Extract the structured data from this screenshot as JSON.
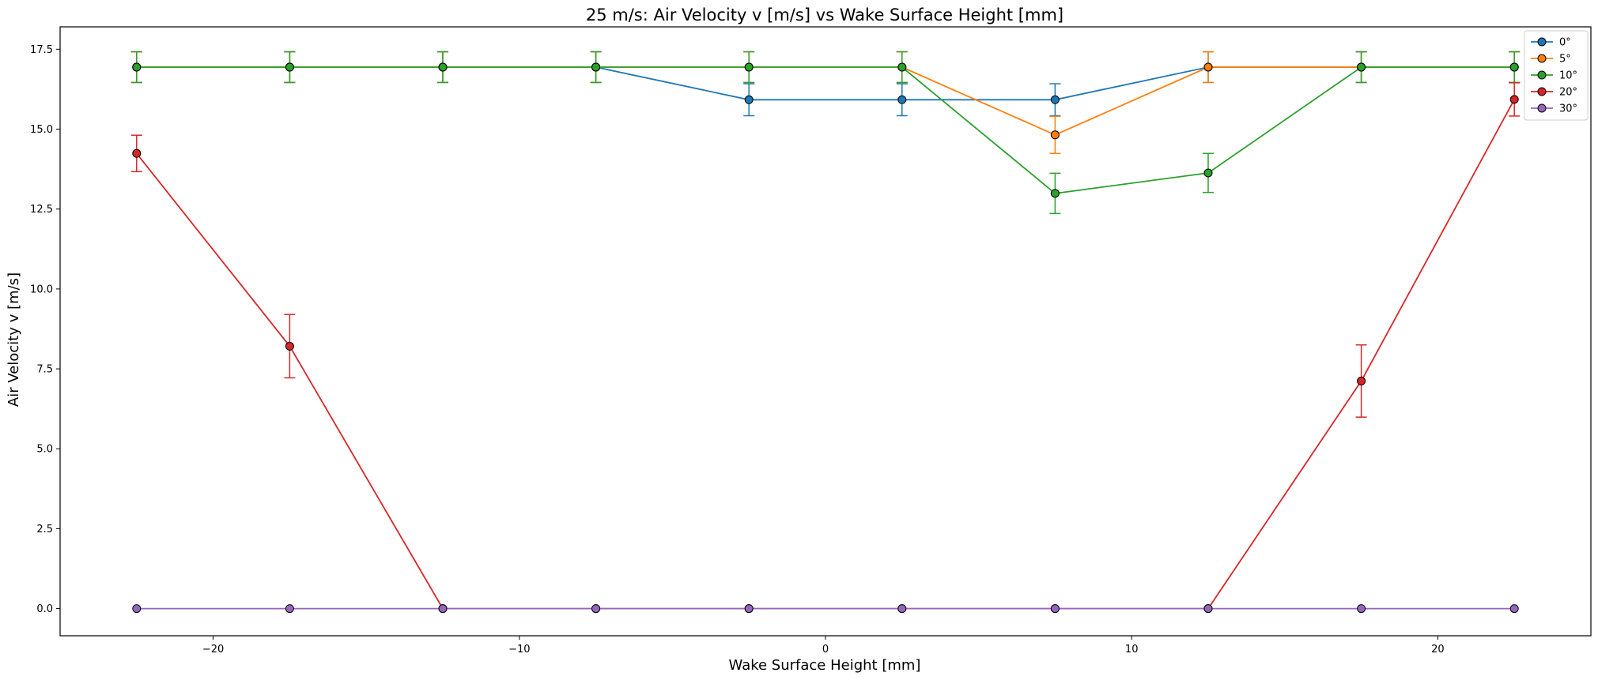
{
  "chart_data": {
    "type": "line",
    "title": "25 m/s: Air Velocity v [m/s] vs Wake Surface Height [mm]",
    "xlabel": "Wake Surface Height [mm]",
    "ylabel": "Air Velocity v [m/s]",
    "xlim": [
      -25,
      25
    ],
    "ylim": [
      -0.85,
      18.2
    ],
    "x_ticks": [
      -20,
      -10,
      0,
      10,
      20
    ],
    "x_tick_labels": [
      "−20",
      "−10",
      "0",
      "10",
      "20"
    ],
    "y_ticks": [
      0.0,
      2.5,
      5.0,
      7.5,
      10.0,
      12.5,
      15.0,
      17.5
    ],
    "y_tick_labels": [
      "0.0",
      "2.5",
      "5.0",
      "7.5",
      "10.0",
      "12.5",
      "15.0",
      "17.5"
    ],
    "grid": false,
    "legend_position": "top-right",
    "x": [
      -22.5,
      -17.5,
      -12.5,
      -7.5,
      -2.5,
      2.5,
      7.5,
      12.5,
      17.5,
      22.5
    ],
    "series": [
      {
        "name": "0°",
        "color": "#1f77b4",
        "values": [
          16.94,
          16.94,
          16.94,
          16.94,
          15.92,
          15.92,
          15.92,
          16.94,
          16.94,
          16.94
        ],
        "errors": [
          0.48,
          0.48,
          0.48,
          0.48,
          0.5,
          0.5,
          0.5,
          0.48,
          0.48,
          0.48
        ]
      },
      {
        "name": "5°",
        "color": "#ff7f0e",
        "values": [
          16.94,
          16.94,
          16.94,
          16.94,
          16.94,
          16.94,
          14.82,
          16.94,
          16.94,
          16.94
        ],
        "errors": [
          0.48,
          0.48,
          0.48,
          0.48,
          0.48,
          0.48,
          0.58,
          0.48,
          0.48,
          0.48
        ]
      },
      {
        "name": "10°",
        "color": "#2ca02c",
        "values": [
          16.94,
          16.94,
          16.94,
          16.94,
          16.94,
          16.94,
          12.99,
          13.63,
          16.94,
          16.94
        ],
        "errors": [
          0.48,
          0.48,
          0.48,
          0.48,
          0.48,
          0.48,
          0.63,
          0.61,
          0.48,
          0.48
        ]
      },
      {
        "name": "20°",
        "color": "#d62728",
        "values": [
          14.24,
          8.21,
          0.0,
          0.0,
          0.0,
          0.0,
          0.0,
          0.0,
          7.12,
          15.93
        ],
        "errors": [
          0.57,
          0.99,
          0.0,
          0.0,
          0.0,
          0.0,
          0.0,
          0.0,
          1.13,
          0.52
        ]
      },
      {
        "name": "30°",
        "color": "#9467bd",
        "values": [
          0.0,
          0.0,
          0.0,
          0.0,
          0.0,
          0.0,
          0.0,
          0.0,
          0.0,
          0.0
        ],
        "errors": [
          0.0,
          0.0,
          0.0,
          0.0,
          0.0,
          0.0,
          0.0,
          0.0,
          0.0,
          0.0
        ]
      }
    ]
  }
}
